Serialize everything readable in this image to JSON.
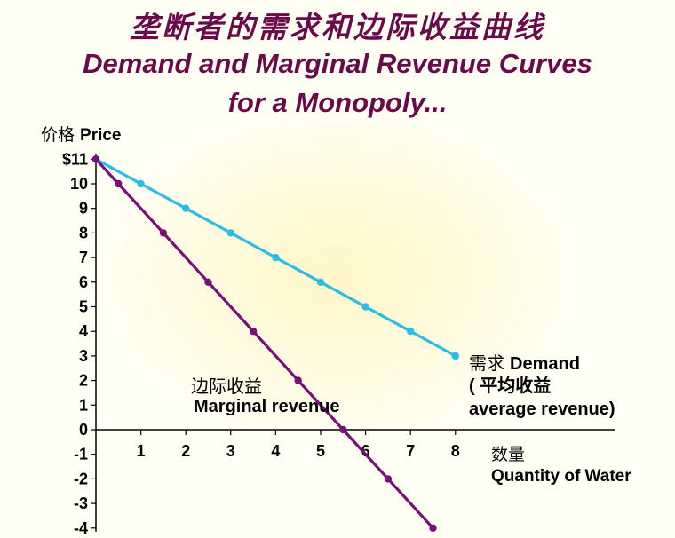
{
  "title_cn": "垄断者的需求和边际收益曲线",
  "title_en_line1": "Demand and Marginal Revenue Curves",
  "title_en_line2": "for a Monopoly...",
  "colors": {
    "title": "#6b0a4a",
    "demand": "#2bbde8",
    "mr": "#7a0e7a",
    "axis": "#000000"
  },
  "chart_data": {
    "type": "line",
    "ylabel_cn": "价格",
    "ylabel": "Price",
    "xlabel_cn": "数量",
    "xlabel": "Quantity of Water",
    "xlim": [
      0,
      8.5
    ],
    "ylim": [
      -4,
      11
    ],
    "x_ticks": [
      "1",
      "2",
      "3",
      "4",
      "5",
      "6",
      "7",
      "8"
    ],
    "y_ticks": [
      "$11",
      "10",
      "9",
      "8",
      "7",
      "6",
      "5",
      "4",
      "3",
      "2",
      "1",
      "0",
      "-1",
      "-2",
      "-3",
      "-4"
    ],
    "series": [
      {
        "name": "Demand",
        "label_cn": "需求",
        "label_line2_cn": "( 平均收益",
        "label_line3": "average revenue)",
        "color": "#2bbde8",
        "x": [
          0,
          1,
          2,
          3,
          4,
          5,
          6,
          7,
          8
        ],
        "y": [
          11,
          10,
          9,
          8,
          7,
          6,
          5,
          4,
          3
        ]
      },
      {
        "name": "Marginal revenue",
        "label_cn": "边际收益",
        "color": "#7a0e7a",
        "x": [
          0,
          0.5,
          1.5,
          2.5,
          3.5,
          4.5,
          5.5,
          6.5,
          7.5
        ],
        "y": [
          11,
          10,
          8,
          6,
          4,
          2,
          0,
          -2,
          -4
        ]
      }
    ]
  }
}
